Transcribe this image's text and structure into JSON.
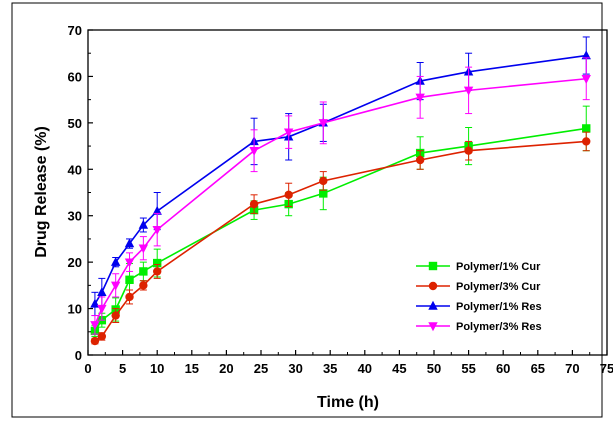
{
  "chart_data": {
    "type": "line",
    "title": "",
    "xlabel": "Time (h)",
    "ylabel": "Drug Release (%)",
    "xlim": [
      0,
      75
    ],
    "ylim": [
      0,
      70
    ],
    "x_ticks": [
      0,
      5,
      10,
      15,
      20,
      25,
      30,
      35,
      40,
      45,
      50,
      55,
      60,
      65,
      70,
      75
    ],
    "y_ticks": [
      0,
      10,
      20,
      30,
      40,
      50,
      60,
      70
    ],
    "grid": false,
    "legend_position": "bottom-right",
    "series": [
      {
        "name": "Polymer/1% Cur",
        "color": "#00ee00",
        "marker": "square",
        "x": [
          1,
          2,
          4,
          6,
          8,
          10,
          24,
          29,
          34,
          48,
          55,
          72
        ],
        "y": [
          5.2,
          7.5,
          9.8,
          16.2,
          18.0,
          19.8,
          31.2,
          32.5,
          34.8,
          43.5,
          45.0,
          48.8
        ],
        "err": [
          1.2,
          1.5,
          2.5,
          3.5,
          2.0,
          3.0,
          2.0,
          2.5,
          3.5,
          3.5,
          4.0,
          4.8
        ]
      },
      {
        "name": "Polymer/3% Cur",
        "color": "#dd2200",
        "marker": "circle",
        "x": [
          1,
          2,
          4,
          6,
          8,
          10,
          24,
          29,
          34,
          48,
          55,
          72
        ],
        "y": [
          3.0,
          4.0,
          8.5,
          12.5,
          15.0,
          18.0,
          32.5,
          34.5,
          37.5,
          42.0,
          44.0,
          46.0
        ],
        "err": [
          0.6,
          0.8,
          1.5,
          1.5,
          1.0,
          1.5,
          2.0,
          2.5,
          2.0,
          2.0,
          2.0,
          2.0
        ]
      },
      {
        "name": "Polymer/1% Res",
        "color": "#0000ee",
        "marker": "triangle-up",
        "x": [
          1,
          2,
          4,
          6,
          8,
          10,
          24,
          29,
          34,
          48,
          55,
          72
        ],
        "y": [
          11.0,
          13.5,
          20.0,
          24.0,
          28.0,
          31.0,
          46.0,
          47.0,
          50.0,
          59.0,
          61.0,
          64.5
        ],
        "err": [
          2.5,
          3.0,
          1.0,
          1.0,
          1.5,
          4.0,
          5.0,
          5.0,
          4.0,
          4.0,
          4.0,
          4.0
        ]
      },
      {
        "name": "Polymer/3% Res",
        "color": "#ff00ff",
        "marker": "triangle-down",
        "x": [
          1,
          2,
          4,
          6,
          8,
          10,
          24,
          29,
          34,
          48,
          55,
          72
        ],
        "y": [
          6.5,
          10.0,
          15.0,
          20.0,
          23.0,
          27.0,
          44.0,
          48.0,
          50.0,
          55.5,
          57.0,
          59.5
        ],
        "err": [
          2.0,
          2.5,
          2.5,
          2.0,
          2.5,
          3.5,
          4.5,
          3.5,
          4.5,
          4.5,
          5.0,
          4.5
        ]
      }
    ]
  }
}
